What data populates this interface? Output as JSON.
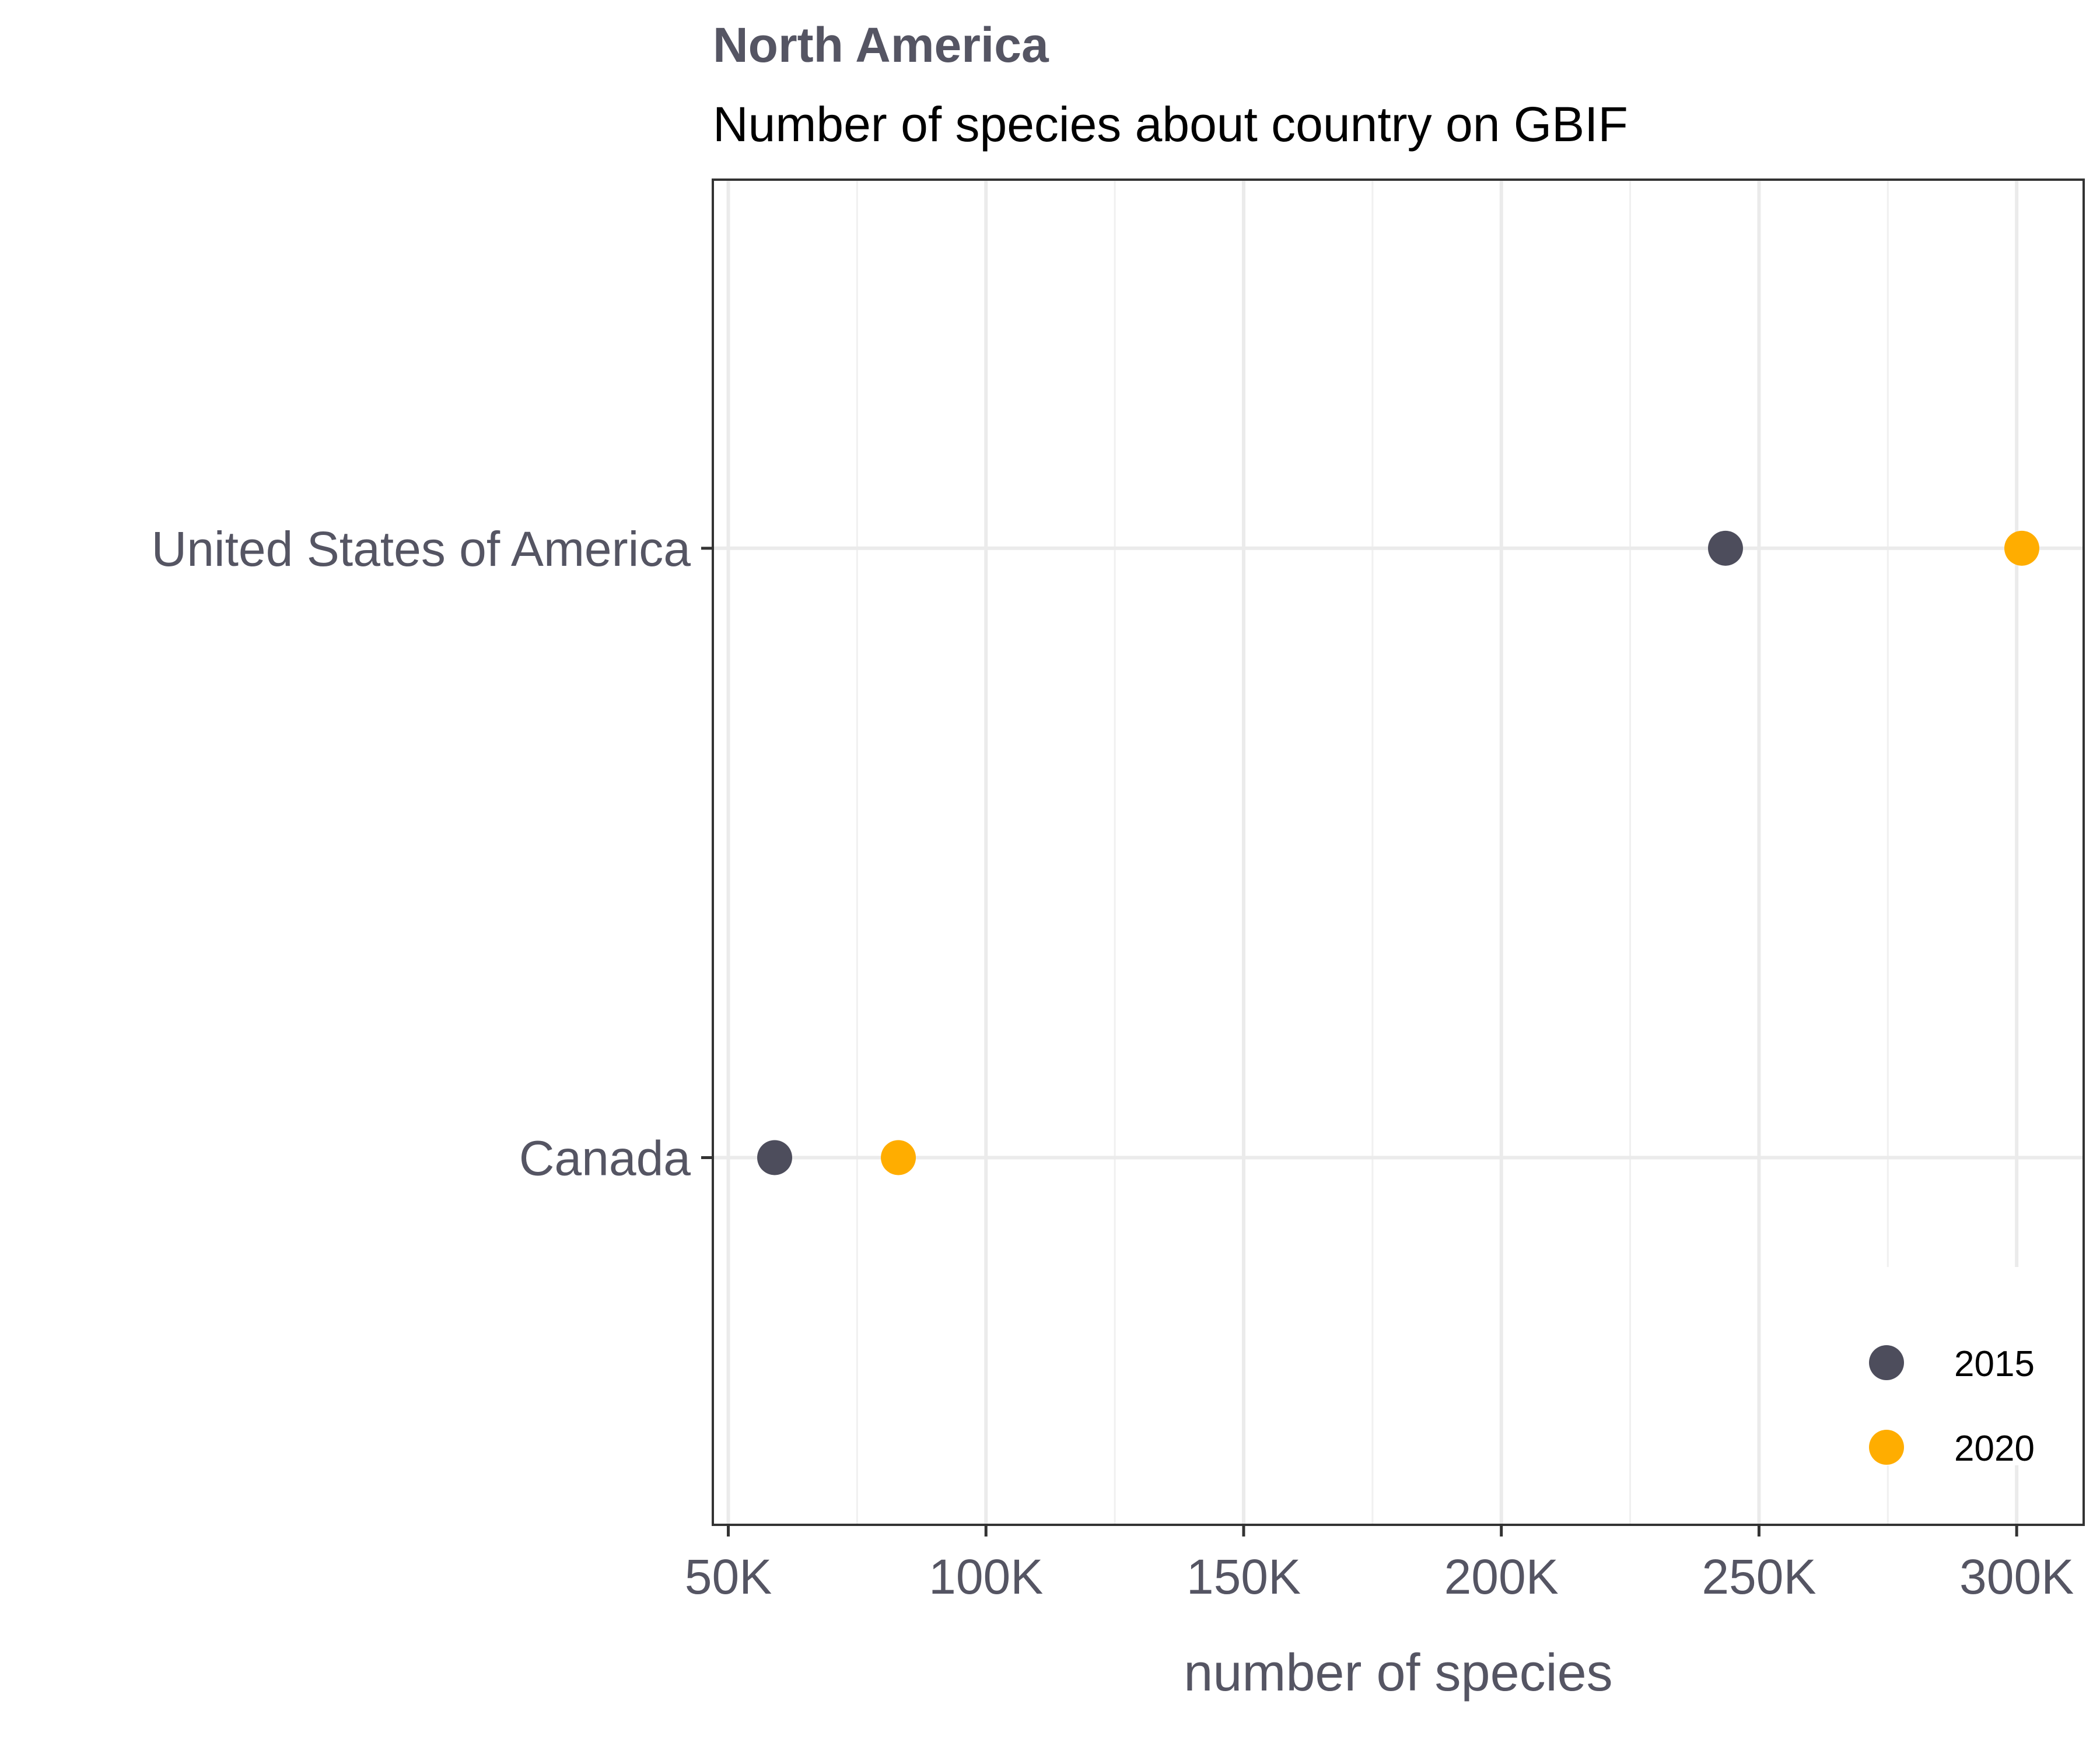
{
  "chart_data": {
    "type": "scatter",
    "title": "North America",
    "subtitle": "Number of species about country on GBIF",
    "xlabel": "number of species",
    "ylabel": "",
    "xlim": [
      47000,
      313000
    ],
    "x_ticks": [
      50000,
      100000,
      150000,
      200000,
      250000,
      300000
    ],
    "x_tick_labels": [
      "50K",
      "100K",
      "150K",
      "200K",
      "250K",
      "300K"
    ],
    "categories": [
      "Canada",
      "United States of America"
    ],
    "series": [
      {
        "name": "2015",
        "color": "#4d4d5c",
        "values": [
          59000,
          243500
        ]
      },
      {
        "name": "2020",
        "color": "#ffad00",
        "values": [
          83000,
          301000
        ]
      }
    ],
    "grid": true,
    "legend_position": "bottom-right"
  }
}
